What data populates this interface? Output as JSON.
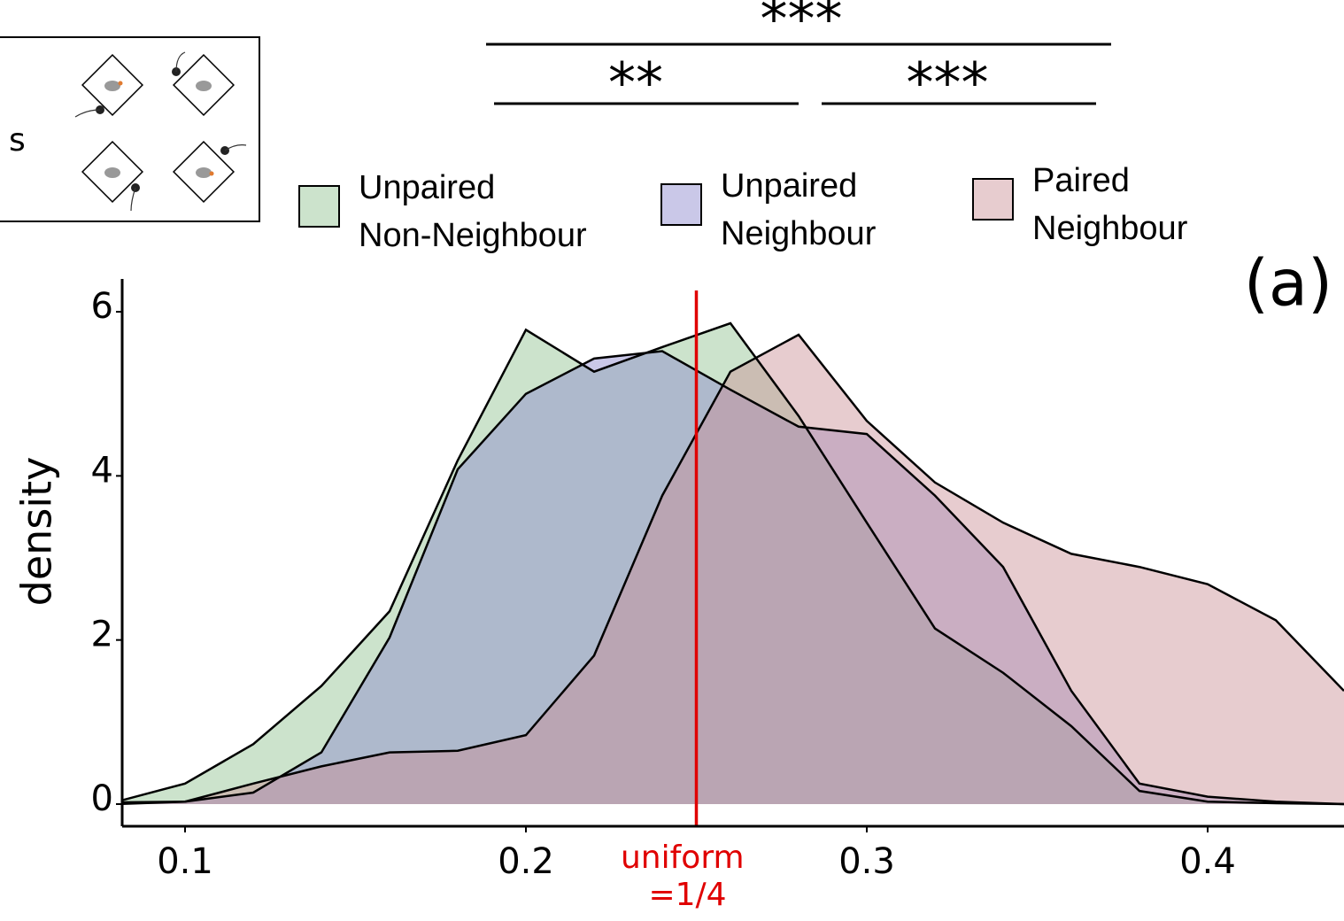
{
  "chart_data": {
    "type": "area",
    "significance": [
      "***",
      "**",
      "***"
    ],
    "inset_label": "s",
    "panel_label": "(a)",
    "ylabel": "density",
    "vline": {
      "value": 0.25,
      "label": "uniform =1/4",
      "color": "#e00000"
    },
    "x": [
      0.08,
      0.1,
      0.12,
      0.14,
      0.16,
      0.18,
      0.2,
      0.22,
      0.24,
      0.26,
      0.28,
      0.3,
      0.32,
      0.34,
      0.36,
      0.38,
      0.4,
      0.42,
      0.44
    ],
    "series": [
      {
        "name": "Unpaired Non-Neighbour",
        "color": "#8fc08f",
        "values": [
          0.03,
          0.25,
          0.73,
          1.44,
          2.35,
          4.19,
          5.78,
          5.27,
          5.57,
          5.86,
          4.73,
          3.43,
          2.14,
          1.6,
          0.95,
          0.16,
          0.03,
          0.01,
          0
        ]
      },
      {
        "name": "Unpaired Neighbour",
        "color": "#8a86cc",
        "values": [
          0.02,
          0.03,
          0.14,
          0.63,
          2.03,
          4.08,
          5.0,
          5.43,
          5.52,
          5.05,
          4.6,
          4.51,
          3.76,
          2.89,
          1.38,
          0.25,
          0.09,
          0.03,
          0
        ]
      },
      {
        "name": "Paired Neighbour",
        "color": "#c98e95",
        "values": [
          0,
          0.03,
          0.25,
          0.46,
          0.63,
          0.65,
          0.84,
          1.81,
          3.76,
          5.27,
          5.72,
          4.67,
          3.92,
          3.43,
          3.05,
          2.89,
          2.68,
          2.24,
          1.38
        ]
      }
    ],
    "xlim": [
      0.08,
      0.44
    ],
    "xticks": [
      0.1,
      0.2,
      0.3,
      0.4
    ],
    "ylim": [
      -0.27,
      6.4
    ],
    "yticks": [
      0,
      2,
      4,
      6
    ]
  }
}
